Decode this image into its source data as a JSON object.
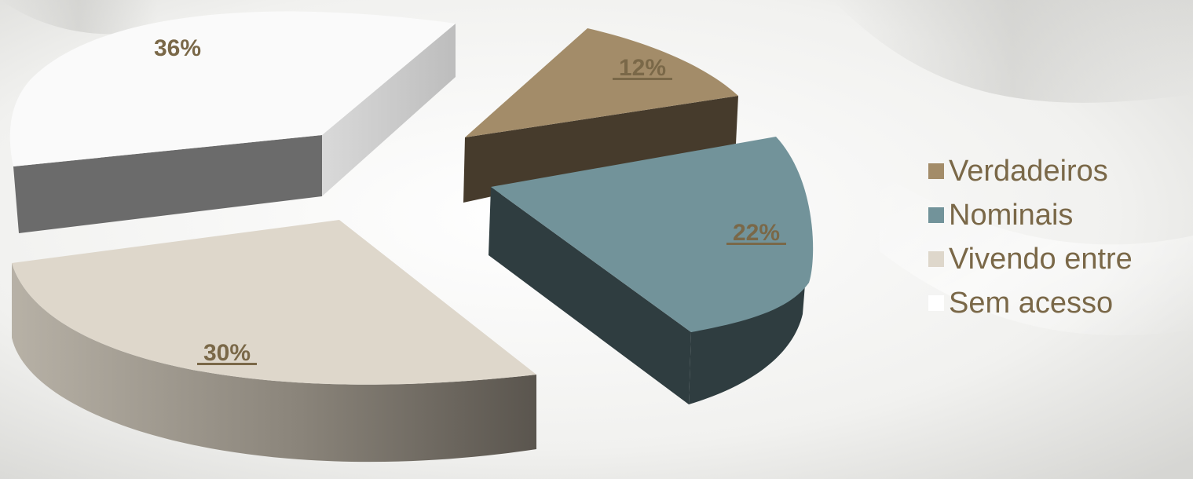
{
  "chart_data": {
    "type": "pie",
    "title": "",
    "slices": [
      {
        "name": "Verdadeiros",
        "value": 12,
        "label": "12%",
        "color": "#a38c69",
        "side_color": "#463b2c",
        "underline": true
      },
      {
        "name": "Nominais",
        "value": 22,
        "label": "22%",
        "color": "#72939a",
        "side_color": "#2f3d40",
        "underline": true
      },
      {
        "name": "Vivendo entre",
        "value": 30,
        "label": "30%",
        "color": "#ded7cb",
        "side_color": "#9d968b",
        "underline": true
      },
      {
        "name": "Sem acesso",
        "value": 36,
        "label": "36%",
        "color": "#fafafa",
        "side_color": "#6b6b6b",
        "underline": false
      }
    ],
    "legend_position": "right",
    "label_color": "#7a6848"
  }
}
